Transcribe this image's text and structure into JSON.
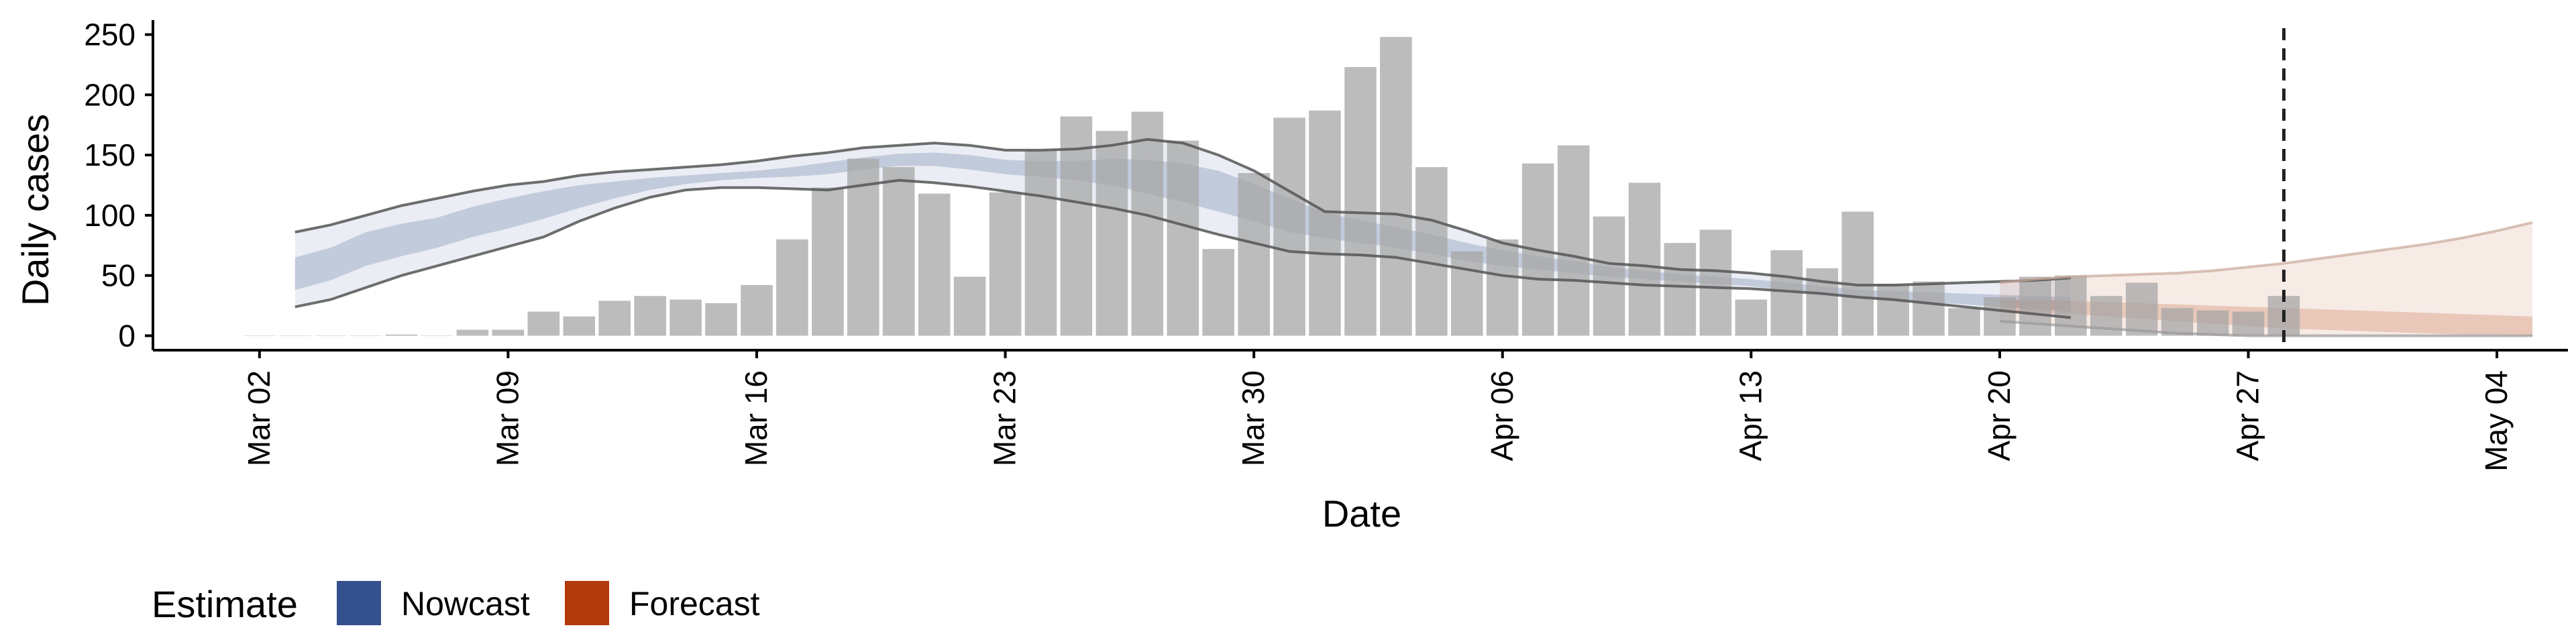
{
  "chart_data": {
    "type": "bar",
    "xlabel": "Date",
    "ylabel": "Daily cases",
    "x_ticks": [
      "Mar 02",
      "Mar 09",
      "Mar 16",
      "Mar 23",
      "Mar 30",
      "Apr 06",
      "Apr 13",
      "Apr 20",
      "Apr 27",
      "May 04"
    ],
    "y_ticks": [
      0,
      50,
      100,
      150,
      200,
      250
    ],
    "xlim": [
      "2020-02-28",
      "2020-05-06"
    ],
    "ylim": [
      -12,
      262
    ],
    "grid": false,
    "reference_line": {
      "date": "2020-04-28",
      "style": "dashed"
    },
    "observed_cases": {
      "start_date": "2020-03-02",
      "values": [
        0,
        0,
        0,
        0,
        1,
        0,
        5,
        5,
        20,
        16,
        29,
        33,
        30,
        27,
        42,
        80,
        123,
        147,
        140,
        118,
        49,
        119,
        154,
        182,
        170,
        186,
        162,
        72,
        135,
        181,
        187,
        223,
        248,
        140,
        70,
        80,
        143,
        158,
        99,
        127,
        77,
        88,
        30,
        71,
        56,
        103,
        43,
        45,
        23,
        32,
        49,
        50,
        33,
        44,
        23,
        21,
        20,
        33
      ]
    },
    "legend": {
      "title": "Estimate",
      "position": "bottom-left",
      "entries": [
        {
          "label": "Nowcast",
          "color": "#35508e"
        },
        {
          "label": "Forecast",
          "color": "#b23a0b"
        }
      ]
    },
    "nowcast": {
      "color": "#35508e",
      "start_date": "2020-03-03",
      "upper_90": [
        86,
        92,
        100,
        108,
        114,
        120,
        125,
        128,
        133,
        136,
        138,
        140,
        142,
        145,
        149,
        152,
        156,
        158,
        160,
        158,
        154,
        154,
        155,
        158,
        163,
        160,
        150,
        137,
        120,
        103,
        102,
        101,
        96,
        87,
        77,
        71,
        66,
        60,
        58,
        55,
        54,
        52,
        49,
        45,
        42,
        42,
        43,
        44,
        45,
        46,
        48
      ],
      "lower_90": [
        24,
        30,
        40,
        50,
        58,
        66,
        74,
        82,
        95,
        106,
        115,
        121,
        123,
        123,
        122,
        121,
        125,
        129,
        127,
        124,
        120,
        116,
        111,
        106,
        100,
        92,
        84,
        77,
        70,
        68,
        67,
        65,
        60,
        55,
        50,
        47,
        46,
        44,
        42,
        41,
        40,
        39,
        37,
        35,
        32,
        30,
        27,
        24,
        21,
        18,
        15
      ],
      "upper_50": [
        65,
        73,
        86,
        93,
        98,
        107,
        114,
        120,
        125,
        128,
        131,
        133,
        135,
        137,
        140,
        144,
        148,
        151,
        152,
        150,
        146,
        145,
        145,
        147,
        146,
        143,
        137,
        126,
        114,
        102,
        96,
        90,
        84,
        77,
        71,
        66,
        62,
        57,
        54,
        51,
        49,
        47,
        44,
        41,
        38,
        37,
        36,
        35,
        34,
        33,
        32
      ],
      "lower_50": [
        38,
        46,
        58,
        66,
        73,
        82,
        89,
        97,
        106,
        114,
        121,
        126,
        129,
        131,
        132,
        134,
        138,
        141,
        141,
        138,
        134,
        132,
        129,
        125,
        118,
        111,
        103,
        95,
        86,
        81,
        77,
        73,
        68,
        62,
        58,
        55,
        52,
        49,
        47,
        45,
        43,
        41,
        38,
        35,
        32,
        30,
        28,
        26,
        24,
        22,
        20
      ]
    },
    "forecast": {
      "color": "#b23a0b",
      "start_date": "2020-04-20",
      "upper_90": [
        44,
        47,
        49,
        50,
        51,
        52,
        54,
        57,
        60,
        64,
        68,
        72,
        76,
        81,
        87,
        94
      ],
      "lower_90": [
        12,
        10,
        8,
        6,
        4,
        2,
        1,
        0,
        0,
        0,
        0,
        0,
        0,
        0,
        0,
        0
      ],
      "upper_50": [
        30,
        30,
        29,
        28,
        27,
        26,
        25,
        24,
        23,
        22,
        21,
        20,
        19,
        18,
        17,
        16
      ],
      "lower_50": [
        20,
        19,
        18,
        16,
        14,
        12,
        10,
        8,
        6,
        5,
        4,
        3,
        2,
        1,
        1,
        0
      ]
    }
  }
}
